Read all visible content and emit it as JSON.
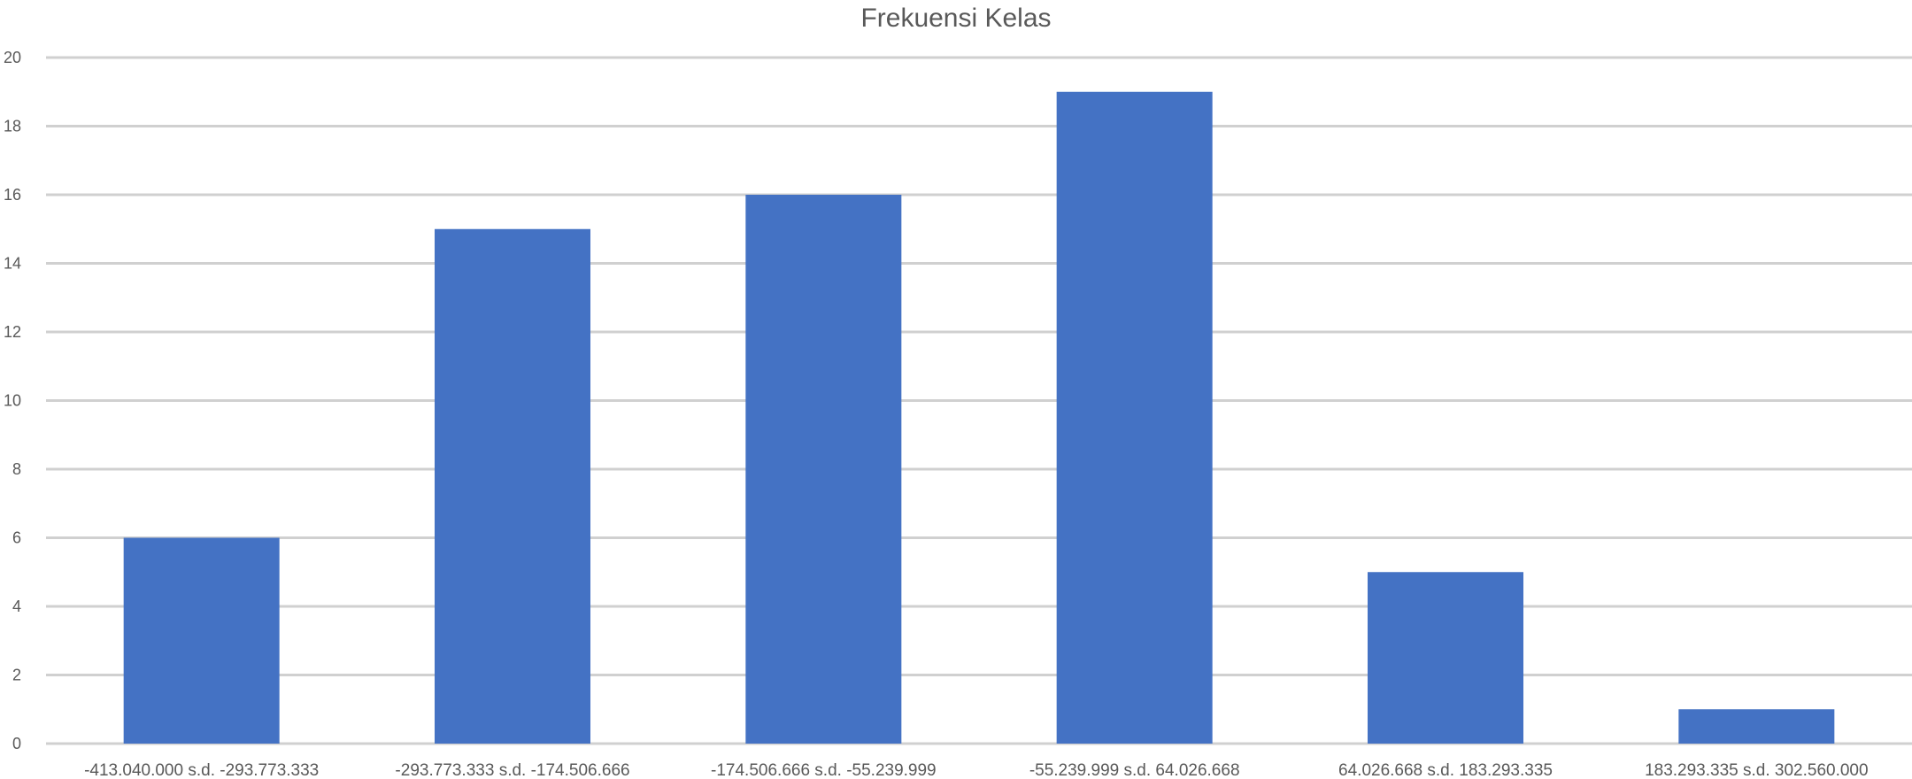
{
  "chart_data": {
    "type": "bar",
    "title": "Frekuensi Kelas",
    "xlabel": "",
    "ylabel": "",
    "categories": [
      "-413.040.000 s.d. -293.773.333",
      "-293.773.333 s.d. -174.506.666",
      "-174.506.666 s.d. -55.239.999",
      "-55.239.999 s.d. 64.026.668",
      "64.026.668 s.d. 183.293.335",
      "183.293.335 s.d. 302.560.000"
    ],
    "values": [
      6,
      15,
      16,
      19,
      5,
      1
    ],
    "ylim": [
      0,
      20
    ],
    "yticks": [
      0,
      2,
      4,
      6,
      8,
      10,
      12,
      14,
      16,
      18,
      20
    ],
    "grid": true,
    "legend": "none",
    "colors": {
      "bar": "#4472C4",
      "grid": "#d0d0d0",
      "text": "#595959"
    }
  }
}
